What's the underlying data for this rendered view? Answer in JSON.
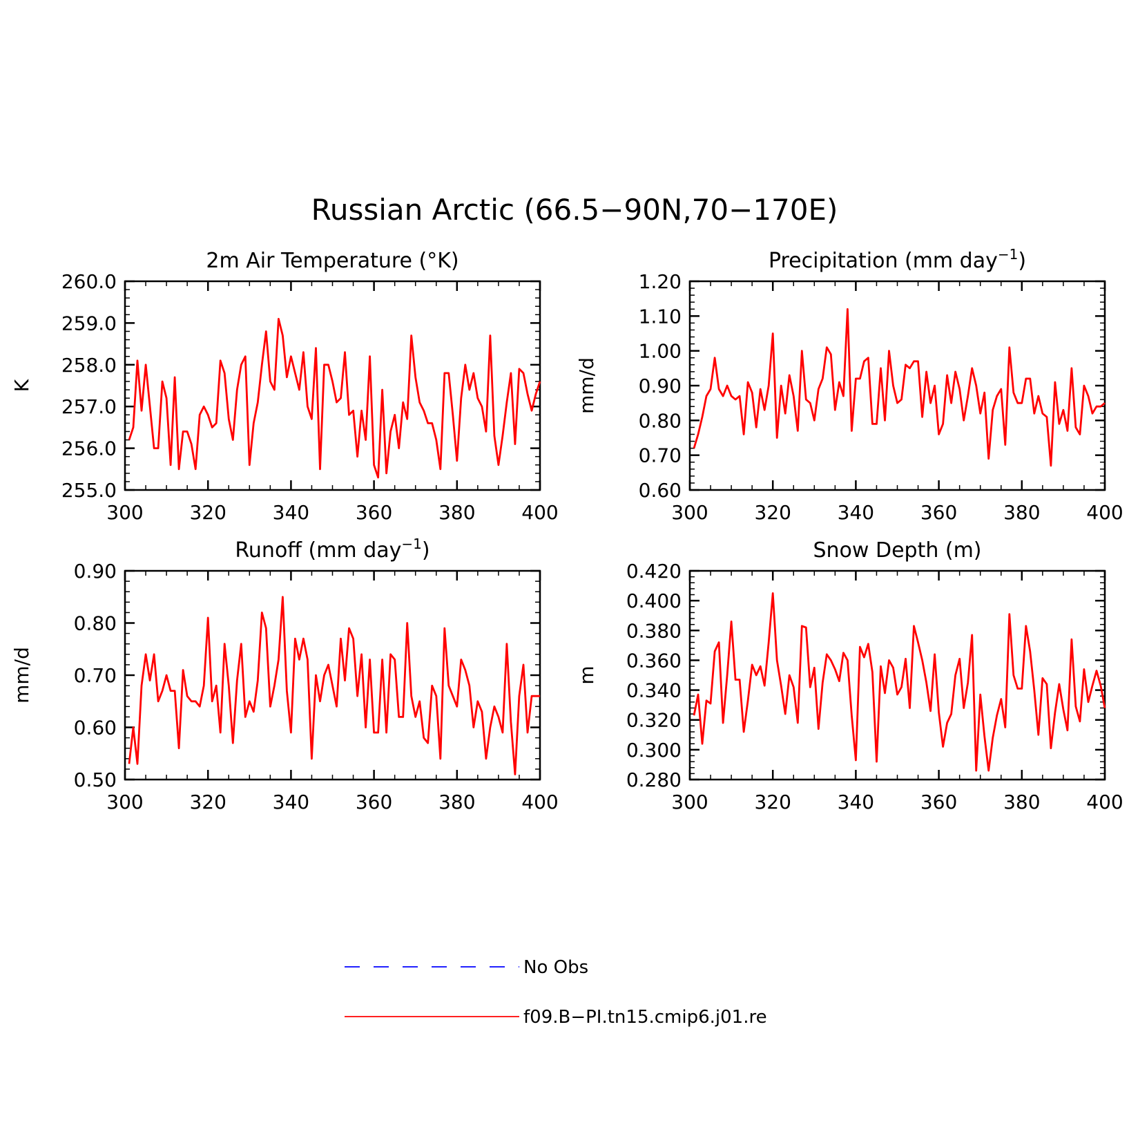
{
  "title": "Russian Arctic (66.5−90N,70−170E)",
  "colors": {
    "series": "#ff0000",
    "obs": "#0000ff",
    "axis": "#000000"
  },
  "legend": {
    "placement": "bottom-center",
    "items": [
      {
        "label": "No Obs",
        "style": "dashed",
        "color": "#0000ff"
      },
      {
        "label": "f09.B−PI.tn15.cmip6.j01.re",
        "style": "solid",
        "color": "#ff0000"
      }
    ]
  },
  "chart_data": [
    {
      "type": "line",
      "title": "2m Air Temperature (°K)",
      "ylabel": "K",
      "xlim": [
        300,
        400
      ],
      "ylim": [
        255,
        260
      ],
      "xticks": [
        "300",
        "320",
        "340",
        "360",
        "380",
        "400"
      ],
      "yticks": [
        "255.0",
        "256.0",
        "257.0",
        "258.0",
        "259.0",
        "260.0"
      ],
      "x_start": 301,
      "values": [
        256.2,
        256.5,
        258.1,
        256.9,
        258.0,
        257.0,
        256.0,
        256.0,
        257.6,
        257.2,
        255.6,
        257.7,
        255.5,
        256.4,
        256.4,
        256.1,
        255.5,
        256.8,
        257.0,
        256.8,
        256.5,
        256.6,
        258.1,
        257.8,
        256.7,
        256.2,
        257.4,
        258.0,
        258.2,
        255.6,
        256.6,
        257.1,
        258.0,
        258.8,
        257.6,
        257.4,
        259.1,
        258.7,
        257.7,
        258.2,
        257.8,
        257.4,
        258.3,
        257.0,
        256.7,
        258.4,
        255.5,
        258.0,
        258.0,
        257.6,
        257.1,
        257.2,
        258.3,
        256.8,
        256.9,
        255.8,
        256.9,
        256.2,
        258.2,
        255.6,
        255.3,
        257.4,
        255.4,
        256.4,
        256.8,
        256.0,
        257.1,
        256.7,
        258.7,
        257.7,
        257.1,
        256.9,
        256.6,
        256.6,
        256.2,
        255.5,
        257.8,
        257.8,
        256.8,
        255.7,
        257.2,
        258.0,
        257.4,
        257.8,
        257.2,
        257.0,
        256.4,
        258.7,
        256.3,
        255.6,
        256.3,
        257.1,
        257.8,
        256.1,
        257.9,
        257.8,
        257.3,
        256.9,
        257.3,
        257.6
      ]
    },
    {
      "type": "line",
      "title": "Precipitation (mm day",
      "title_sup": "−1",
      "title_end": ")",
      "ylabel": "mm/d",
      "xlim": [
        300,
        400
      ],
      "ylim": [
        0.6,
        1.2
      ],
      "xticks": [
        "300",
        "320",
        "340",
        "360",
        "380",
        "400"
      ],
      "yticks": [
        "0.60",
        "0.70",
        "0.80",
        "0.90",
        "1.00",
        "1.10",
        "1.20"
      ],
      "x_start": 301,
      "values": [
        0.72,
        0.76,
        0.81,
        0.87,
        0.89,
        0.98,
        0.89,
        0.87,
        0.9,
        0.87,
        0.86,
        0.87,
        0.76,
        0.91,
        0.88,
        0.78,
        0.89,
        0.83,
        0.9,
        1.05,
        0.75,
        0.9,
        0.82,
        0.93,
        0.87,
        0.77,
        1.0,
        0.86,
        0.85,
        0.8,
        0.89,
        0.92,
        1.01,
        0.99,
        0.83,
        0.91,
        0.87,
        1.12,
        0.77,
        0.92,
        0.92,
        0.97,
        0.98,
        0.79,
        0.79,
        0.95,
        0.8,
        1.0,
        0.9,
        0.85,
        0.86,
        0.96,
        0.95,
        0.97,
        0.97,
        0.81,
        0.94,
        0.85,
        0.9,
        0.76,
        0.79,
        0.93,
        0.85,
        0.94,
        0.89,
        0.8,
        0.87,
        0.95,
        0.9,
        0.82,
        0.88,
        0.69,
        0.83,
        0.87,
        0.89,
        0.73,
        1.01,
        0.88,
        0.85,
        0.85,
        0.92,
        0.92,
        0.82,
        0.87,
        0.82,
        0.81,
        0.67,
        0.91,
        0.79,
        0.83,
        0.77,
        0.95,
        0.78,
        0.76,
        0.9,
        0.87,
        0.82,
        0.84,
        0.84,
        0.85
      ]
    },
    {
      "type": "line",
      "title": "Runoff (mm day",
      "title_sup": "−1",
      "title_end": ")",
      "ylabel": "mm/d",
      "xlim": [
        300,
        400
      ],
      "ylim": [
        0.5,
        0.9
      ],
      "xticks": [
        "300",
        "320",
        "340",
        "360",
        "380",
        "400"
      ],
      "yticks": [
        "0.50",
        "0.60",
        "0.70",
        "0.80",
        "0.90"
      ],
      "x_start": 301,
      "values": [
        0.53,
        0.6,
        0.53,
        0.68,
        0.74,
        0.69,
        0.74,
        0.65,
        0.67,
        0.7,
        0.67,
        0.67,
        0.56,
        0.71,
        0.66,
        0.65,
        0.65,
        0.64,
        0.68,
        0.81,
        0.65,
        0.68,
        0.59,
        0.76,
        0.68,
        0.57,
        0.69,
        0.76,
        0.62,
        0.65,
        0.63,
        0.69,
        0.82,
        0.79,
        0.64,
        0.68,
        0.73,
        0.85,
        0.67,
        0.59,
        0.77,
        0.73,
        0.77,
        0.73,
        0.54,
        0.7,
        0.65,
        0.7,
        0.72,
        0.68,
        0.64,
        0.77,
        0.69,
        0.79,
        0.77,
        0.66,
        0.74,
        0.6,
        0.73,
        0.59,
        0.59,
        0.73,
        0.59,
        0.74,
        0.73,
        0.62,
        0.62,
        0.8,
        0.66,
        0.62,
        0.65,
        0.58,
        0.57,
        0.68,
        0.66,
        0.54,
        0.79,
        0.68,
        0.66,
        0.64,
        0.73,
        0.71,
        0.68,
        0.6,
        0.65,
        0.63,
        0.54,
        0.6,
        0.64,
        0.62,
        0.59,
        0.76,
        0.61,
        0.51,
        0.66,
        0.72,
        0.59,
        0.66,
        0.66,
        0.66
      ]
    },
    {
      "type": "line",
      "title": "Snow Depth (m)",
      "ylabel": "m",
      "xlim": [
        300,
        400
      ],
      "ylim": [
        0.28,
        0.42
      ],
      "xticks": [
        "300",
        "320",
        "340",
        "360",
        "380",
        "400"
      ],
      "yticks": [
        "0.280",
        "0.300",
        "0.320",
        "0.340",
        "0.360",
        "0.380",
        "0.400",
        "0.420"
      ],
      "x_start": 301,
      "values": [
        0.323,
        0.337,
        0.304,
        0.333,
        0.331,
        0.366,
        0.372,
        0.318,
        0.35,
        0.386,
        0.347,
        0.347,
        0.312,
        0.333,
        0.357,
        0.35,
        0.356,
        0.343,
        0.372,
        0.405,
        0.36,
        0.343,
        0.324,
        0.35,
        0.342,
        0.318,
        0.383,
        0.382,
        0.342,
        0.355,
        0.314,
        0.345,
        0.364,
        0.36,
        0.354,
        0.346,
        0.365,
        0.36,
        0.323,
        0.293,
        0.369,
        0.362,
        0.371,
        0.352,
        0.292,
        0.356,
        0.338,
        0.36,
        0.355,
        0.337,
        0.342,
        0.361,
        0.328,
        0.383,
        0.372,
        0.36,
        0.345,
        0.326,
        0.364,
        0.325,
        0.302,
        0.318,
        0.324,
        0.35,
        0.361,
        0.328,
        0.345,
        0.377,
        0.286,
        0.337,
        0.309,
        0.286,
        0.308,
        0.323,
        0.334,
        0.315,
        0.391,
        0.35,
        0.341,
        0.341,
        0.383,
        0.366,
        0.34,
        0.31,
        0.348,
        0.344,
        0.301,
        0.325,
        0.344,
        0.327,
        0.313,
        0.374,
        0.329,
        0.319,
        0.354,
        0.332,
        0.343,
        0.353,
        0.343,
        0.328
      ]
    }
  ]
}
